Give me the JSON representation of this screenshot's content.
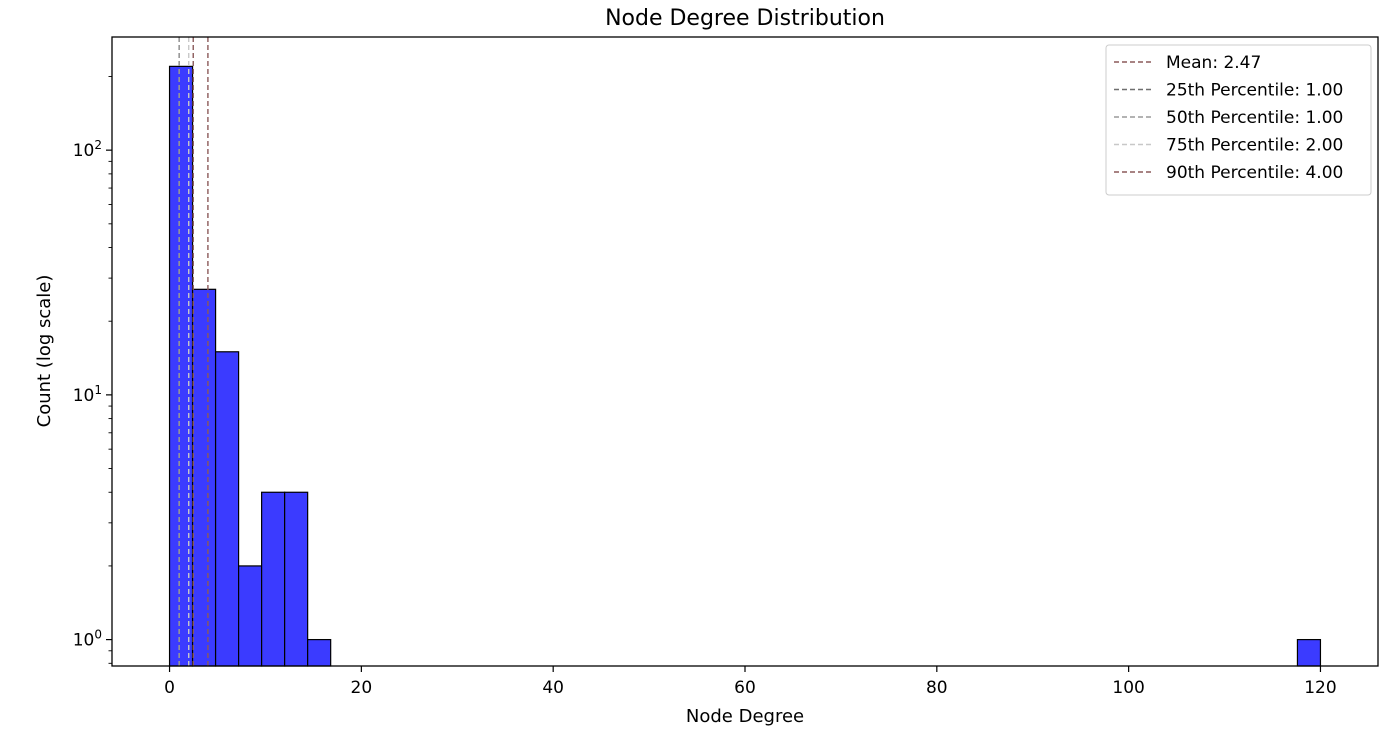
{
  "chart_data": {
    "type": "bar",
    "title": "Node Degree Distribution",
    "xlabel": "Node Degree",
    "ylabel": "Count (log scale)",
    "xlim": [
      -6.0,
      126.0
    ],
    "ylim": [
      0.78,
      290
    ],
    "yscale": "log",
    "x_ticks": [
      {
        "value": 0,
        "label": "0"
      },
      {
        "value": 20,
        "label": "20"
      },
      {
        "value": 40,
        "label": "40"
      },
      {
        "value": 60,
        "label": "60"
      },
      {
        "value": 80,
        "label": "80"
      },
      {
        "value": 100,
        "label": "100"
      },
      {
        "value": 120,
        "label": "120"
      }
    ],
    "y_ticks": [
      {
        "value": 1,
        "base": "10",
        "exp": "0"
      },
      {
        "value": 10,
        "base": "10",
        "exp": "1"
      },
      {
        "value": 100,
        "base": "10",
        "exp": "2"
      }
    ],
    "bar_color": "#3b3bff",
    "bar_edge_color": "#000000",
    "bars": [
      {
        "x0": 0.0,
        "x1": 2.4,
        "count": 220
      },
      {
        "x0": 2.4,
        "x1": 4.8,
        "count": 27
      },
      {
        "x0": 4.8,
        "x1": 7.2,
        "count": 15
      },
      {
        "x0": 7.2,
        "x1": 9.6,
        "count": 2
      },
      {
        "x0": 9.6,
        "x1": 12.0,
        "count": 4
      },
      {
        "x0": 12.0,
        "x1": 14.4,
        "count": 4
      },
      {
        "x0": 14.4,
        "x1": 16.8,
        "count": 1
      },
      {
        "x0": 117.6,
        "x1": 120.0,
        "count": 1
      }
    ],
    "reference_lines": [
      {
        "label": "Mean: 2.47",
        "value": 2.47,
        "color": "#8b5a5a"
      },
      {
        "label": "25th Percentile: 1.00",
        "value": 1.0,
        "color": "#6f6f6f"
      },
      {
        "label": "50th Percentile: 1.00",
        "value": 1.0,
        "color": "#9a9a9a"
      },
      {
        "label": "75th Percentile: 2.00",
        "value": 2.0,
        "color": "#c8c8c8"
      },
      {
        "label": "90th Percentile: 4.00",
        "value": 4.0,
        "color": "#8b5a5a"
      }
    ],
    "legend_position": "top-right",
    "grid": false
  }
}
